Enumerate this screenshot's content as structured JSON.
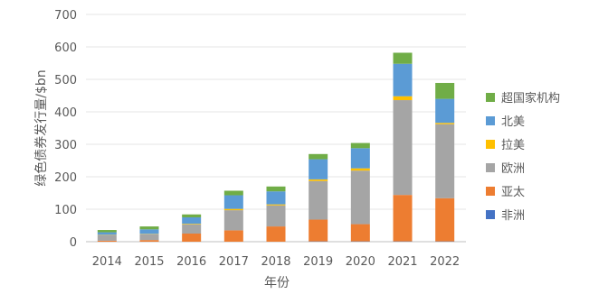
{
  "chart_data": {
    "type": "bar",
    "stacked": true,
    "categories": [
      "2014",
      "2015",
      "2016",
      "2017",
      "2018",
      "2019",
      "2020",
      "2021",
      "2022"
    ],
    "xlabel": "年份",
    "ylabel": "绿色债券发行量/$bn",
    "ylim": [
      0,
      700
    ],
    "yticks": [
      0,
      100,
      200,
      300,
      400,
      500,
      600,
      700
    ],
    "grid": true,
    "legend_position": "right",
    "series": [
      {
        "name": "非洲",
        "color": "#4472C4",
        "values": [
          0,
          0,
          0,
          0,
          0,
          1,
          1,
          1,
          1
        ]
      },
      {
        "name": "亚太",
        "color": "#ED7D31",
        "values": [
          3,
          5,
          25,
          35,
          47,
          67,
          53,
          143,
          133
        ]
      },
      {
        "name": "欧洲",
        "color": "#A5A5A5",
        "values": [
          17,
          18,
          28,
          62,
          65,
          119,
          165,
          292,
          228
        ]
      },
      {
        "name": "拉美",
        "color": "#FFC000",
        "values": [
          1,
          1,
          2,
          4,
          3,
          5,
          7,
          12,
          4
        ]
      },
      {
        "name": "北美",
        "color": "#5B9BD5",
        "values": [
          8,
          14,
          20,
          42,
          40,
          62,
          62,
          100,
          74
        ]
      },
      {
        "name": "超国家机构",
        "color": "#70AD47",
        "values": [
          7,
          9,
          9,
          14,
          15,
          16,
          16,
          34,
          49
        ]
      }
    ]
  }
}
